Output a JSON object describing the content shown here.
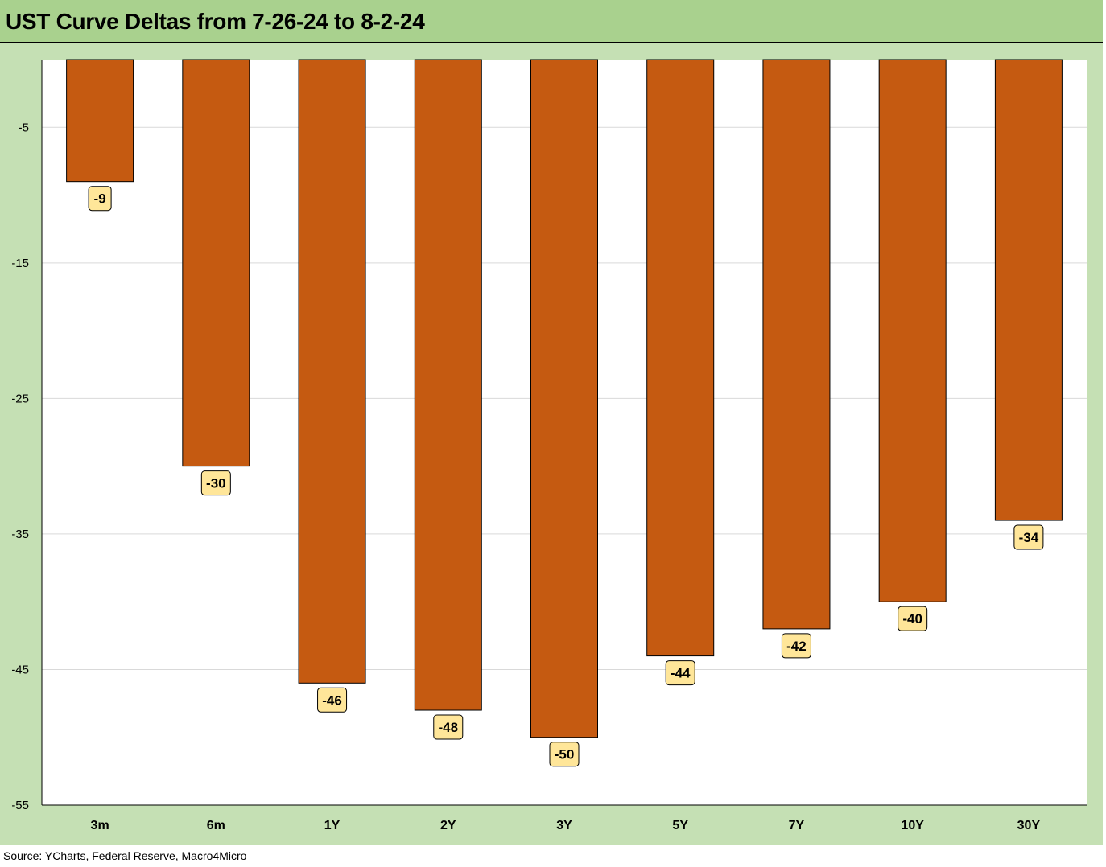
{
  "title": "UST Curve Deltas from 7-26-24 to 8-2-24",
  "source": "Source: YCharts, Federal Reserve, Macro4Micro",
  "colors": {
    "header_bg": "#a9d18e",
    "chart_bg": "#c5e0b4",
    "plot_bg": "#ffffff",
    "bar": "#c55a11",
    "label_bg": "#ffe699"
  },
  "chart_data": {
    "type": "bar",
    "categories": [
      "3m",
      "6m",
      "1Y",
      "2Y",
      "3Y",
      "5Y",
      "7Y",
      "10Y",
      "30Y"
    ],
    "values": [
      -9,
      -30,
      -46,
      -48,
      -50,
      -44,
      -42,
      -40,
      -34
    ],
    "data_labels": [
      "-9",
      "-30",
      "-46",
      "-48",
      "-50",
      "-44",
      "-42",
      "-40",
      "-34"
    ],
    "ylim": [
      -55,
      0
    ],
    "yticks": [
      -5,
      -15,
      -25,
      -35,
      -45,
      -55
    ],
    "ytick_labels": [
      "-5",
      "-15",
      "-25",
      "-35",
      "-45",
      "-55"
    ],
    "grid": true,
    "legend": "none",
    "title": "UST Curve Deltas from 7-26-24 to 8-2-24",
    "xlabel": "",
    "ylabel": ""
  }
}
